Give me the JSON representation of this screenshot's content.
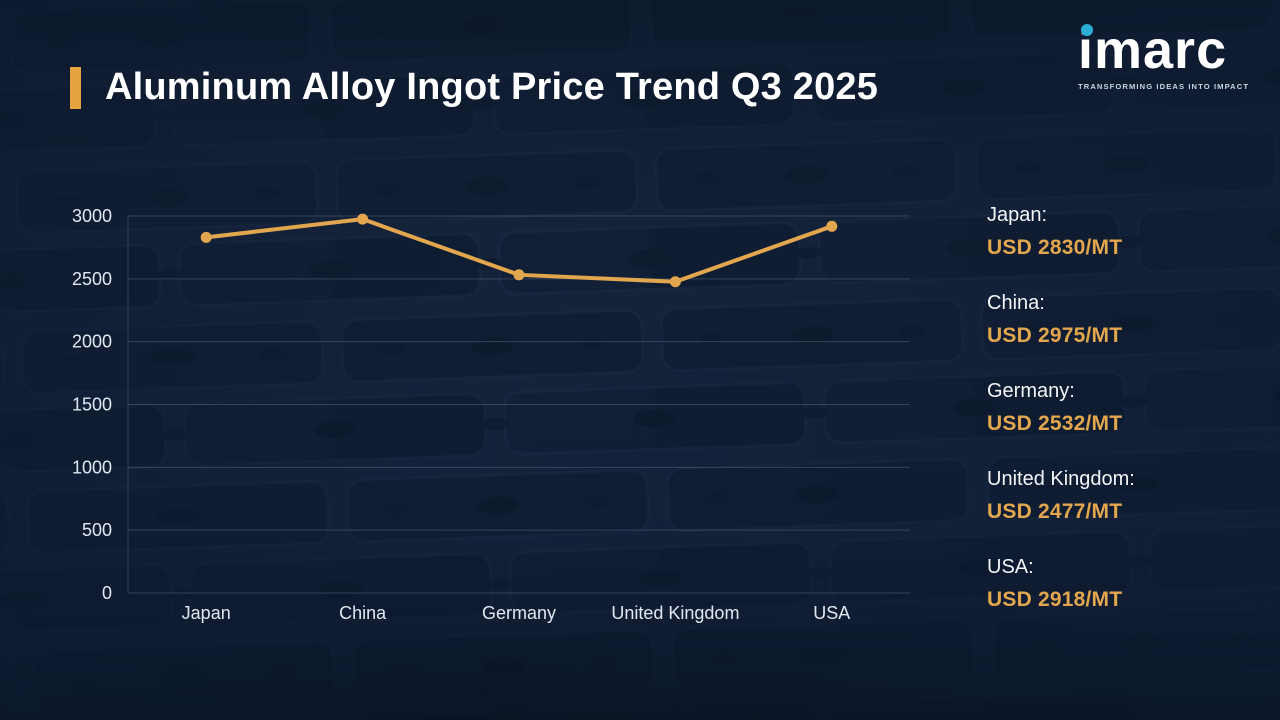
{
  "header": {
    "title": "Aluminum Alloy Ingot Price Trend Q3 2025",
    "accent_color": "#E5A33F"
  },
  "logo": {
    "name": "imarc",
    "tagline": "TRANSFORMING IDEAS INTO IMPACT",
    "dot_color": "#29AFD6"
  },
  "chart_data": {
    "type": "line",
    "categories": [
      "Japan",
      "China",
      "Germany",
      "United Kingdom",
      "USA"
    ],
    "values": [
      2830,
      2975,
      2532,
      2477,
      2918
    ],
    "title": "Aluminum Alloy Ingot Price Trend Q3 2025",
    "xlabel": "",
    "ylabel": "",
    "ylim": [
      0,
      3000
    ],
    "ytick_step": 500,
    "yticks": [
      0,
      500,
      1000,
      1500,
      2000,
      2500,
      3000
    ],
    "grid": true,
    "legend": false,
    "line_color": "#E2A74E",
    "marker_color": "#E2A74E",
    "grid_color": "#55627A"
  },
  "side_panel": {
    "value_color": "#E2A74E",
    "items": [
      {
        "label": "Japan:",
        "value": "USD 2830/MT"
      },
      {
        "label": "China:",
        "value": "USD 2975/MT"
      },
      {
        "label": "Germany:",
        "value": "USD 2532/MT"
      },
      {
        "label": "United Kingdom:",
        "value": "USD 2477/MT"
      },
      {
        "label": "USA:",
        "value": "USD 2918/MT"
      }
    ]
  }
}
